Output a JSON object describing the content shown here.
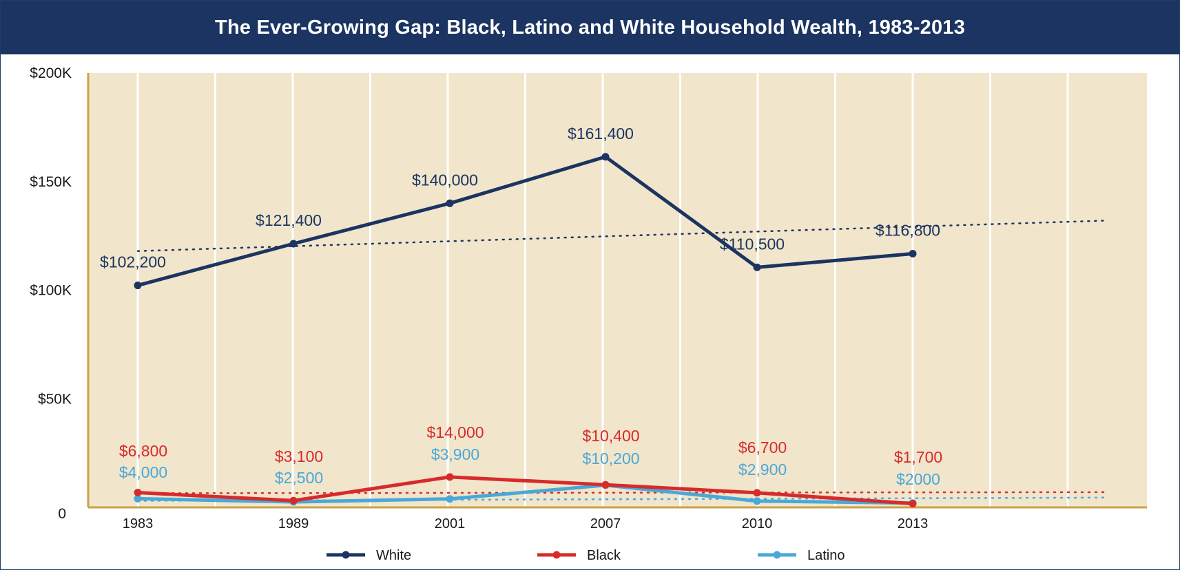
{
  "chart_data": {
    "type": "line",
    "title": "The Ever-Growing Gap: Black, Latino and White Household Wealth, 1983-2013",
    "categories": [
      "1983",
      "1989",
      "2001",
      "2007",
      "2010",
      "2013"
    ],
    "y_ticks": [
      "$200K",
      "$150K",
      "$100K",
      "$50K",
      "0"
    ],
    "ylim": [
      0,
      200000
    ],
    "grid": true,
    "legend_position": "bottom",
    "series": [
      {
        "name": "White",
        "color": "#1b3461",
        "values": [
          102200,
          121400,
          140000,
          161400,
          110500,
          116800
        ],
        "labels": [
          "$102,200",
          "$121,400",
          "$140,000",
          "$161,400",
          "$110,500",
          "$116,800"
        ],
        "trendline": [
          118000,
          132000
        ]
      },
      {
        "name": "Black",
        "color": "#d62b2b",
        "values": [
          6800,
          3100,
          14000,
          10400,
          6700,
          1700
        ],
        "labels": [
          "$6,800",
          "$3,100",
          "$14,000",
          "$10,400",
          "$6,700",
          "$1,700"
        ],
        "trendline": [
          6500,
          7000
        ]
      },
      {
        "name": "Latino",
        "color": "#4aa8d8",
        "values": [
          4000,
          2500,
          3900,
          10200,
          2900,
          2000
        ],
        "labels": [
          "$4,000",
          "$2,500",
          "$3,900",
          "$10,200",
          "$2,900",
          "$2000"
        ],
        "trendline": [
          3000,
          4500
        ]
      }
    ]
  }
}
